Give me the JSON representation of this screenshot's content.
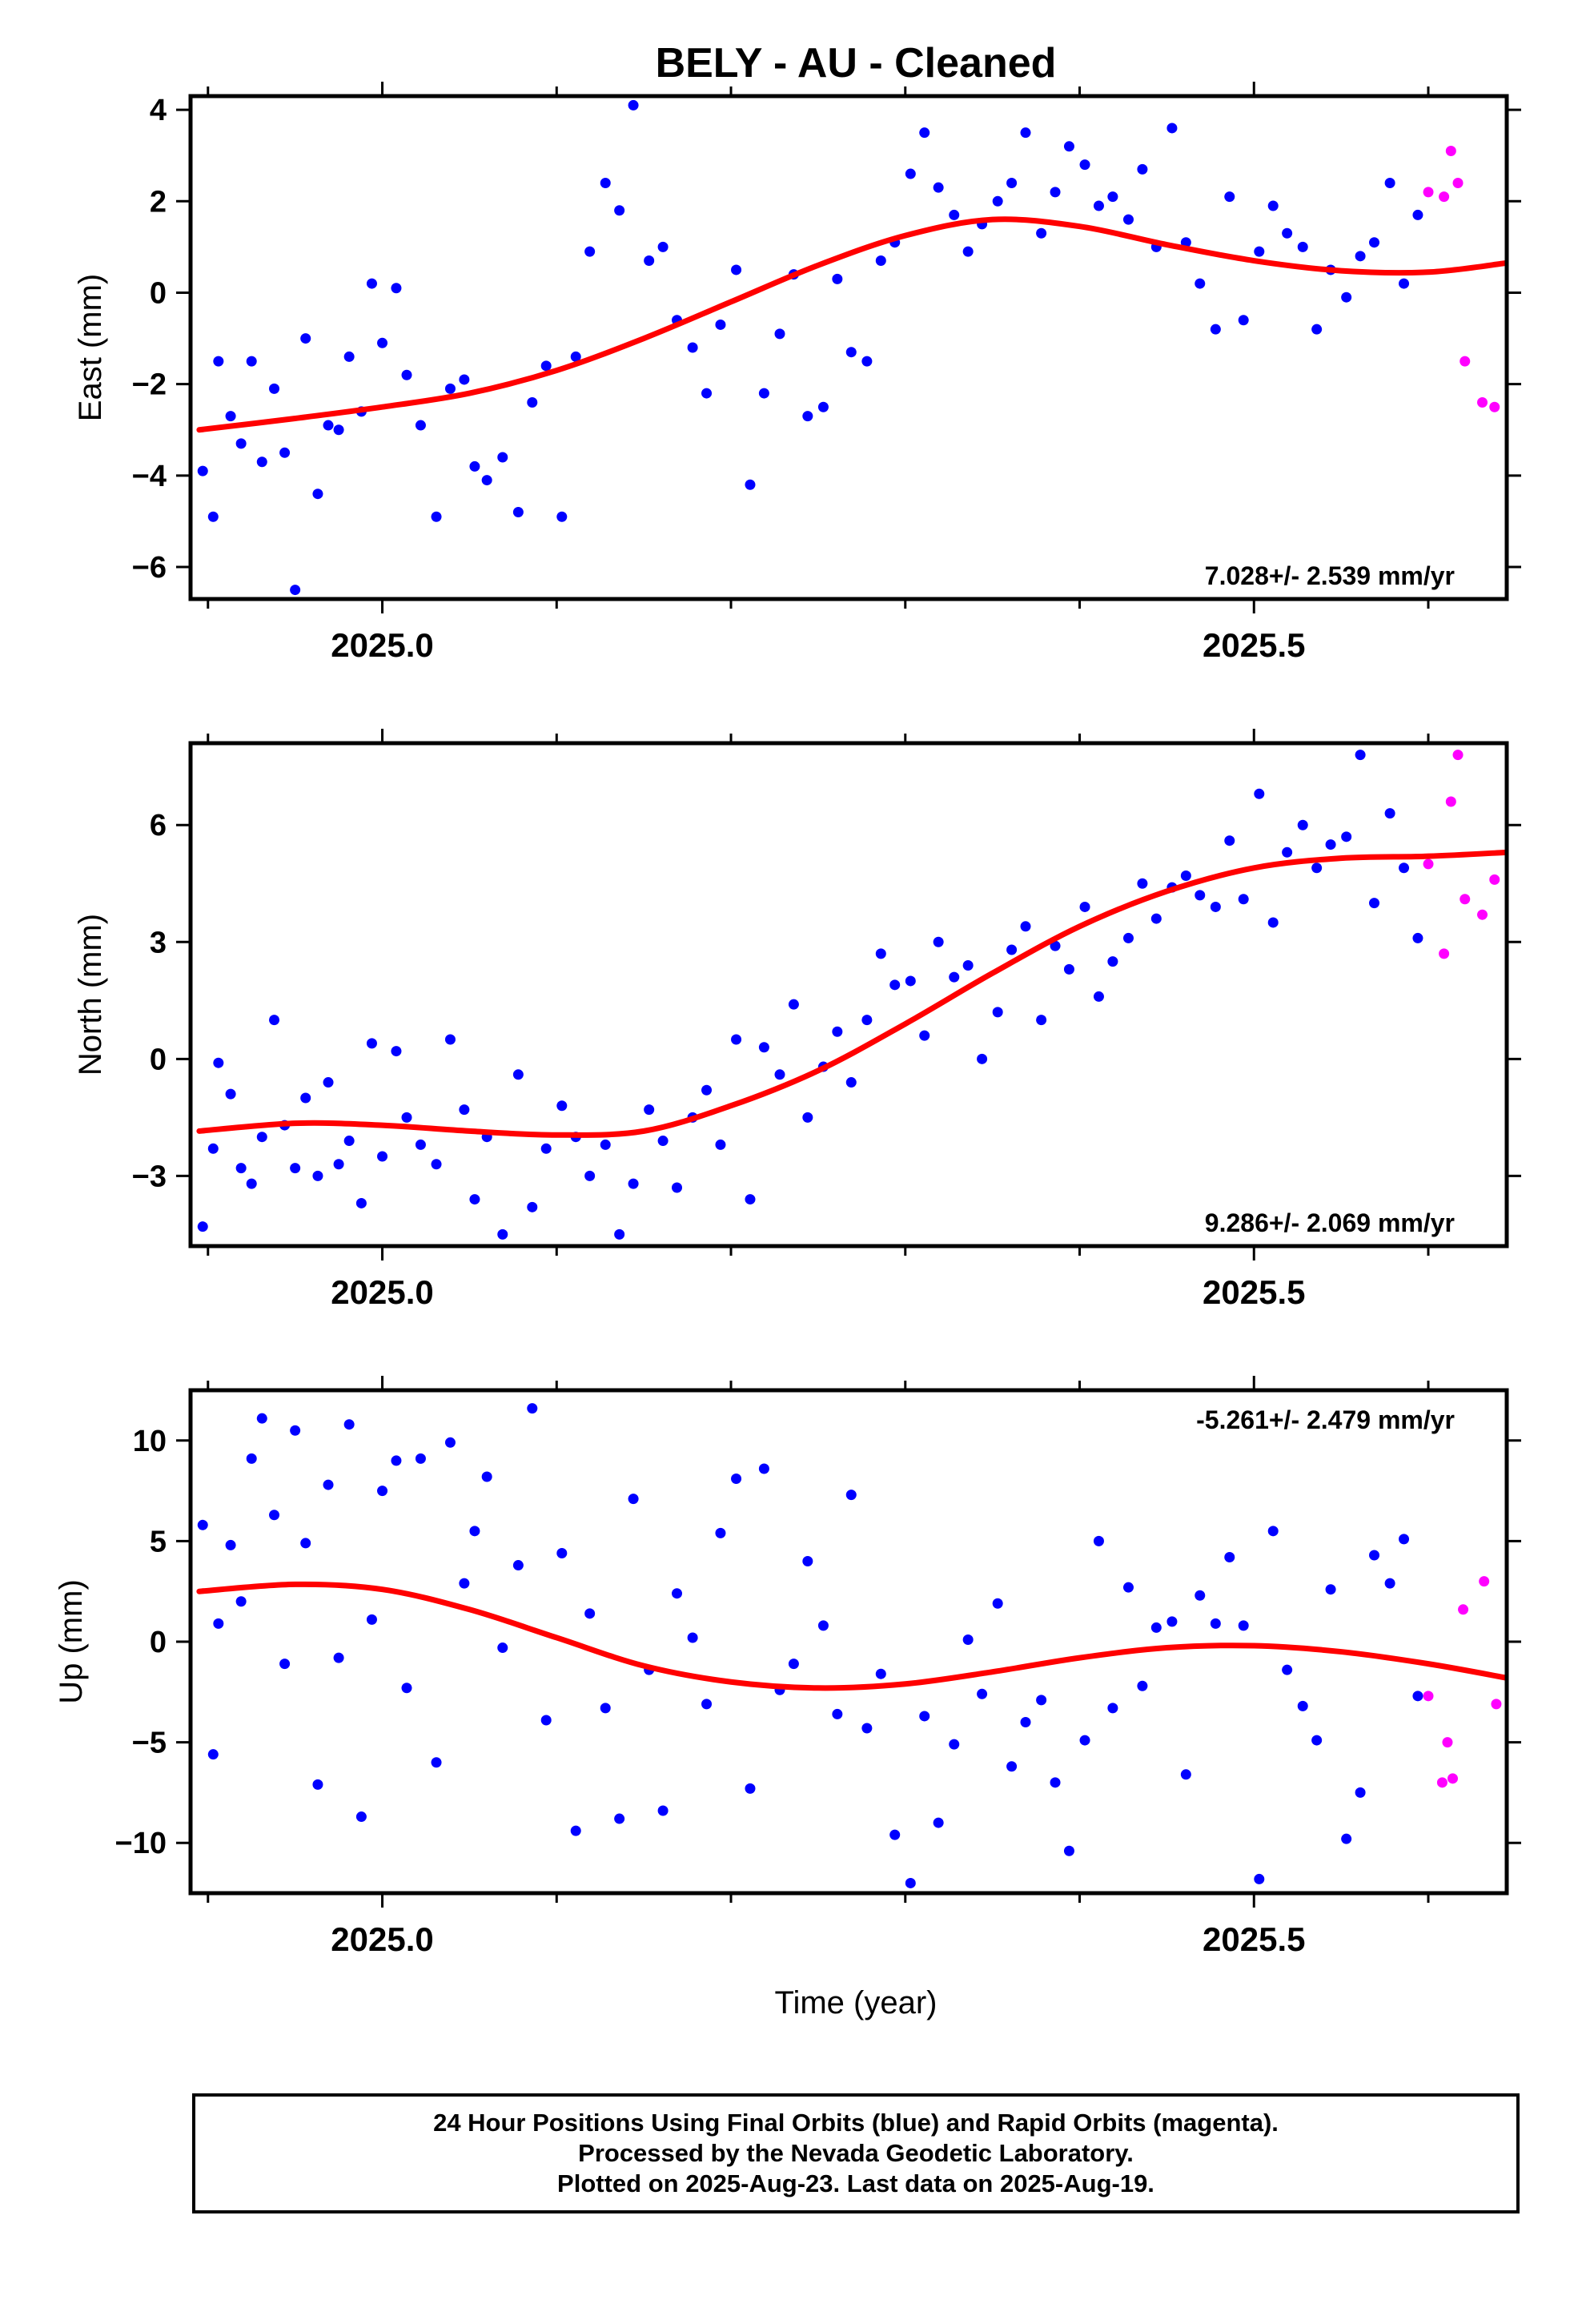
{
  "title": "BELY  - AU - Cleaned",
  "xlabel": "Time (year)",
  "footer": {
    "line1": "24 Hour Positions Using Final Orbits (blue) and Rapid Orbits (magenta).",
    "line2": "Processed by the Nevada Geodetic Laboratory.",
    "line3": "Plotted on 2025-Aug-23. Last data on 2025-Aug-19."
  },
  "colors": {
    "final": "#0000ff",
    "rapid": "#ff00ff",
    "model": "#ff0000"
  },
  "chart_data": [
    {
      "type": "scatter",
      "ylabel": "East (mm)",
      "rate": "7.028+/- 2.539 mm/yr",
      "rate_position": "bottom-right",
      "xlim": [
        2024.89,
        2025.645
      ],
      "ylim": [
        -6.7,
        4.3
      ],
      "xticks": [
        2025.0,
        2025.5
      ],
      "xtick_labels": [
        "2025.0",
        "2025.5"
      ],
      "yticks": [
        4,
        2,
        0,
        -2,
        -4,
        -6
      ],
      "ytick_labels": [
        "4",
        "2",
        "0",
        "−2",
        "−4",
        "−6"
      ],
      "grid": false,
      "model_curve": {
        "x": [
          2024.895,
          2024.95,
          2025.0,
          2025.05,
          2025.1,
          2025.15,
          2025.2,
          2025.25,
          2025.3,
          2025.35,
          2025.4,
          2025.45,
          2025.5,
          2025.55,
          2025.6,
          2025.645
        ],
        "y": [
          -3.0,
          -2.75,
          -2.5,
          -2.2,
          -1.7,
          -1.0,
          -0.2,
          0.6,
          1.25,
          1.6,
          1.45,
          1.05,
          0.7,
          0.48,
          0.45,
          0.65
        ]
      },
      "series": [
        {
          "name": "Final Orbits",
          "color": "#0000ff",
          "x": [
            2024.897,
            2024.903,
            2024.906,
            2024.913,
            2024.919,
            2024.925,
            2024.931,
            2024.938,
            2024.944,
            2024.95,
            2024.956,
            2024.963,
            2024.969,
            2024.975,
            2024.981,
            2024.988,
            2024.994,
            2025.0,
            2025.008,
            2025.014,
            2025.022,
            2025.031,
            2025.039,
            2025.047,
            2025.053,
            2025.06,
            2025.069,
            2025.078,
            2025.086,
            2025.094,
            2025.103,
            2025.111,
            2025.119,
            2025.128,
            2025.136,
            2025.144,
            2025.153,
            2025.161,
            2025.169,
            2025.178,
            2025.186,
            2025.194,
            2025.203,
            2025.211,
            2025.219,
            2025.228,
            2025.236,
            2025.244,
            2025.253,
            2025.261,
            2025.269,
            2025.278,
            2025.286,
            2025.294,
            2025.303,
            2025.311,
            2025.319,
            2025.328,
            2025.336,
            2025.344,
            2025.353,
            2025.361,
            2025.369,
            2025.378,
            2025.386,
            2025.394,
            2025.403,
            2025.411,
            2025.419,
            2025.428,
            2025.436,
            2025.444,
            2025.453,
            2025.461,
            2025.469,
            2025.478,
            2025.486,
            2025.494,
            2025.503,
            2025.511,
            2025.519,
            2025.528,
            2025.536,
            2025.544,
            2025.553,
            2025.561,
            2025.569,
            2025.578,
            2025.586,
            2025.594
          ],
          "y": [
            -3.9,
            -4.9,
            -1.5,
            -2.7,
            -3.3,
            -1.5,
            -3.7,
            -2.1,
            -3.5,
            -6.5,
            -1.0,
            -4.4,
            -2.9,
            -3.0,
            -1.4,
            -2.6,
            0.2,
            -1.1,
            0.1,
            -1.8,
            -2.9,
            -4.9,
            -2.1,
            -1.9,
            -3.8,
            -4.1,
            -3.6,
            -4.8,
            -2.4,
            -1.6,
            -4.9,
            -1.4,
            0.9,
            2.4,
            1.8,
            4.1,
            0.7,
            1.0,
            -0.6,
            -1.2,
            -2.2,
            -0.7,
            0.5,
            -4.2,
            -2.2,
            -0.9,
            0.4,
            -2.7,
            -2.5,
            0.3,
            -1.3,
            -1.5,
            0.7,
            1.1,
            2.6,
            3.5,
            2.3,
            1.7,
            0.9,
            1.5,
            2.0,
            2.4,
            3.5,
            1.3,
            2.2,
            3.2,
            2.8,
            1.9,
            2.1,
            1.6,
            2.7,
            1.0,
            3.6,
            1.1,
            0.2,
            -0.8,
            2.1,
            -0.6,
            0.9,
            1.9,
            1.3,
            1.0,
            -0.8,
            0.5,
            -0.1,
            0.8,
            1.1,
            2.4,
            0.2,
            1.7
          ],
          "shape": "circle"
        },
        {
          "name": "Rapid Orbits",
          "color": "#ff00ff",
          "x": [
            2025.6,
            2025.609,
            2025.613,
            2025.617,
            2025.621,
            2025.631,
            2025.638
          ],
          "y": [
            2.2,
            2.1,
            3.1,
            2.4,
            -1.5,
            -2.4,
            -2.5
          ],
          "shape": "circle"
        }
      ]
    },
    {
      "type": "scatter",
      "ylabel": "North (mm)",
      "rate": "9.286+/- 2.069 mm/yr",
      "rate_position": "bottom-right",
      "xlim": [
        2024.89,
        2025.645
      ],
      "ylim": [
        -4.8,
        8.1
      ],
      "xticks": [
        2025.0,
        2025.5
      ],
      "xtick_labels": [
        "2025.0",
        "2025.5"
      ],
      "yticks": [
        6,
        3,
        0,
        -3
      ],
      "ytick_labels": [
        "6",
        "3",
        "0",
        "−3"
      ],
      "grid": false,
      "model_curve": {
        "x": [
          2024.895,
          2024.95,
          2025.0,
          2025.05,
          2025.1,
          2025.15,
          2025.2,
          2025.25,
          2025.3,
          2025.35,
          2025.4,
          2025.45,
          2025.5,
          2025.55,
          2025.6,
          2025.645
        ],
        "y": [
          -1.85,
          -1.65,
          -1.7,
          -1.85,
          -1.95,
          -1.85,
          -1.2,
          -0.3,
          0.9,
          2.2,
          3.4,
          4.3,
          4.9,
          5.15,
          5.2,
          5.3
        ]
      },
      "series": [
        {
          "name": "Final Orbits",
          "color": "#0000ff",
          "x": [
            2024.897,
            2024.903,
            2024.906,
            2024.913,
            2024.919,
            2024.925,
            2024.931,
            2024.938,
            2024.944,
            2024.95,
            2024.956,
            2024.963,
            2024.969,
            2024.975,
            2024.981,
            2024.988,
            2024.994,
            2025.0,
            2025.008,
            2025.014,
            2025.022,
            2025.031,
            2025.039,
            2025.047,
            2025.053,
            2025.06,
            2025.069,
            2025.078,
            2025.086,
            2025.094,
            2025.103,
            2025.111,
            2025.119,
            2025.128,
            2025.136,
            2025.144,
            2025.153,
            2025.161,
            2025.169,
            2025.178,
            2025.186,
            2025.194,
            2025.203,
            2025.211,
            2025.219,
            2025.228,
            2025.236,
            2025.244,
            2025.253,
            2025.261,
            2025.269,
            2025.278,
            2025.286,
            2025.294,
            2025.303,
            2025.311,
            2025.319,
            2025.328,
            2025.336,
            2025.344,
            2025.353,
            2025.361,
            2025.369,
            2025.378,
            2025.386,
            2025.394,
            2025.403,
            2025.411,
            2025.419,
            2025.428,
            2025.436,
            2025.444,
            2025.453,
            2025.461,
            2025.469,
            2025.478,
            2025.486,
            2025.494,
            2025.503,
            2025.511,
            2025.519,
            2025.528,
            2025.536,
            2025.544,
            2025.553,
            2025.561,
            2025.569,
            2025.578,
            2025.586,
            2025.594
          ],
          "y": [
            -4.3,
            -2.3,
            -0.1,
            -0.9,
            -2.8,
            -3.2,
            -2.0,
            1.0,
            -1.7,
            -2.8,
            -1.0,
            -3.0,
            -0.6,
            -2.7,
            -2.1,
            -3.7,
            0.4,
            -2.5,
            0.2,
            -1.5,
            -2.2,
            -2.7,
            0.5,
            -1.3,
            -3.6,
            -2.0,
            -4.5,
            -0.4,
            -3.8,
            -2.3,
            -1.2,
            -2.0,
            -3.0,
            -2.2,
            -4.5,
            -3.2,
            -1.3,
            -2.1,
            -3.3,
            -1.5,
            -0.8,
            -2.2,
            0.5,
            -3.6,
            0.3,
            -0.4,
            1.4,
            -1.5,
            -0.2,
            0.7,
            -0.6,
            1.0,
            2.7,
            1.9,
            2.0,
            0.6,
            3.0,
            2.1,
            2.4,
            0.0,
            1.2,
            2.8,
            3.4,
            1.0,
            2.9,
            2.3,
            3.9,
            1.6,
            2.5,
            3.1,
            4.5,
            3.6,
            4.4,
            4.7,
            4.2,
            3.9,
            5.6,
            4.1,
            6.8,
            3.5,
            5.3,
            6.0,
            4.9,
            5.5,
            5.7,
            7.8,
            4.0,
            6.3,
            4.9,
            3.1
          ],
          "shape": "circle"
        },
        {
          "name": "Rapid Orbits",
          "color": "#ff00ff",
          "x": [
            2025.6,
            2025.609,
            2025.613,
            2025.617,
            2025.621,
            2025.631,
            2025.638
          ],
          "y": [
            5.0,
            2.7,
            6.6,
            7.8,
            4.1,
            3.7,
            4.6
          ],
          "shape": "circle"
        }
      ]
    },
    {
      "type": "scatter",
      "ylabel": "Up (mm)",
      "rate": "-5.261+/- 2.479 mm/yr",
      "rate_position": "top-right",
      "xlim": [
        2024.89,
        2025.645
      ],
      "ylim": [
        -12.5,
        12.5
      ],
      "xticks": [
        2025.0,
        2025.5
      ],
      "xtick_labels": [
        "2025.0",
        "2025.5"
      ],
      "yticks": [
        10,
        5,
        0,
        -5,
        -10
      ],
      "ytick_labels": [
        "10",
        "5",
        "0",
        "−5",
        "−10"
      ],
      "grid": false,
      "model_curve": {
        "x": [
          2024.895,
          2024.95,
          2025.0,
          2025.05,
          2025.1,
          2025.15,
          2025.2,
          2025.25,
          2025.3,
          2025.35,
          2025.4,
          2025.45,
          2025.5,
          2025.55,
          2025.6,
          2025.645
        ],
        "y": [
          2.5,
          2.85,
          2.6,
          1.6,
          0.2,
          -1.2,
          -2.0,
          -2.3,
          -2.1,
          -1.5,
          -0.8,
          -0.3,
          -0.2,
          -0.5,
          -1.1,
          -1.8
        ]
      },
      "series": [
        {
          "name": "Final Orbits",
          "color": "#0000ff",
          "x": [
            2024.897,
            2024.903,
            2024.906,
            2024.913,
            2024.919,
            2024.925,
            2024.931,
            2024.938,
            2024.944,
            2024.95,
            2024.956,
            2024.963,
            2024.969,
            2024.975,
            2024.981,
            2024.988,
            2024.994,
            2025.0,
            2025.008,
            2025.014,
            2025.022,
            2025.031,
            2025.039,
            2025.047,
            2025.053,
            2025.06,
            2025.069,
            2025.078,
            2025.086,
            2025.094,
            2025.103,
            2025.111,
            2025.119,
            2025.128,
            2025.136,
            2025.144,
            2025.153,
            2025.161,
            2025.169,
            2025.178,
            2025.186,
            2025.194,
            2025.203,
            2025.211,
            2025.219,
            2025.228,
            2025.236,
            2025.244,
            2025.253,
            2025.261,
            2025.269,
            2025.278,
            2025.286,
            2025.294,
            2025.303,
            2025.311,
            2025.319,
            2025.328,
            2025.336,
            2025.344,
            2025.353,
            2025.361,
            2025.369,
            2025.378,
            2025.386,
            2025.394,
            2025.403,
            2025.411,
            2025.419,
            2025.428,
            2025.436,
            2025.444,
            2025.453,
            2025.461,
            2025.469,
            2025.478,
            2025.486,
            2025.494,
            2025.503,
            2025.511,
            2025.519,
            2025.528,
            2025.536,
            2025.544,
            2025.553,
            2025.561,
            2025.569,
            2025.578,
            2025.586,
            2025.594
          ],
          "y": [
            5.8,
            -5.6,
            0.9,
            4.8,
            2.0,
            9.1,
            11.1,
            6.3,
            -1.1,
            10.5,
            4.9,
            -7.1,
            7.8,
            -0.8,
            10.8,
            -8.7,
            1.1,
            7.5,
            9.0,
            -2.3,
            9.1,
            -6.0,
            9.9,
            2.9,
            5.5,
            8.2,
            -0.3,
            3.8,
            11.6,
            -3.9,
            4.4,
            -9.4,
            1.4,
            -3.3,
            -8.8,
            7.1,
            -1.4,
            -8.4,
            2.4,
            0.2,
            -3.1,
            5.4,
            8.1,
            -7.3,
            8.6,
            -2.4,
            -1.1,
            4.0,
            0.8,
            -3.6,
            7.3,
            -4.3,
            -1.6,
            -9.6,
            -12.0,
            -3.7,
            -9.0,
            -5.1,
            0.1,
            -2.6,
            1.9,
            -6.2,
            -4.0,
            -2.9,
            -7.0,
            -10.4,
            -4.9,
            5.0,
            -3.3,
            2.7,
            -2.2,
            0.7,
            1.0,
            -6.6,
            2.3,
            0.9,
            4.2,
            0.8,
            -11.8,
            5.5,
            -1.4,
            -3.2,
            -4.9,
            2.6,
            -9.8,
            -7.5,
            4.3,
            2.9,
            5.1,
            -2.7
          ],
          "shape": "circle"
        },
        {
          "name": "Rapid Orbits",
          "color": "#ff00ff",
          "x": [
            2025.6,
            2025.608,
            2025.611,
            2025.614,
            2025.62,
            2025.632,
            2025.639
          ],
          "y": [
            -2.7,
            -7.0,
            -5.0,
            -6.8,
            1.6,
            3.0,
            -3.1
          ],
          "shape": "circle"
        }
      ]
    }
  ]
}
